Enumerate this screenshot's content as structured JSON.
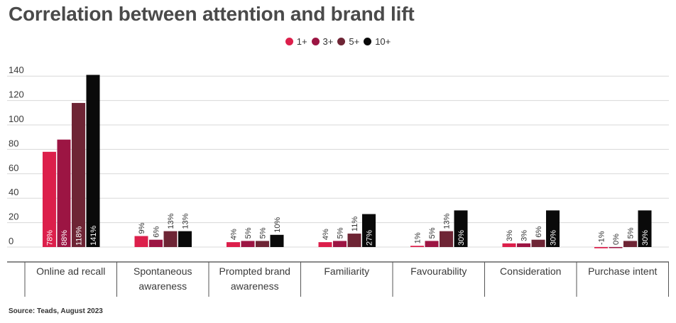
{
  "title": "Correlation between attention and brand lift",
  "source": "Source: Teads, August 2023",
  "colors": {
    "series": [
      "#dc1f4b",
      "#9c1543",
      "#6e2535",
      "#0a0a0a"
    ],
    "grid": "#d8d8d8",
    "axis": "#444444",
    "text": "#3a3a3a"
  },
  "chart_data": {
    "type": "bar",
    "title": "Correlation between attention and brand lift",
    "categories": [
      "Online ad recall",
      "Spontaneous awareness",
      "Prompted brand awareness",
      "Familiarity",
      "Favourability",
      "Consideration",
      "Purchase intent"
    ],
    "category_lines": [
      [
        "Online ad recall"
      ],
      [
        "Spontaneous",
        "awareness"
      ],
      [
        "Prompted brand",
        "awareness"
      ],
      [
        "Familiarity"
      ],
      [
        "Favourability"
      ],
      [
        "Consideration"
      ],
      [
        "Purchase intent"
      ]
    ],
    "series": [
      {
        "name": "1+",
        "values": [
          78,
          9,
          4,
          4,
          1,
          3,
          -1
        ],
        "labels": [
          "78%",
          "9%",
          "4%",
          "4%",
          "1%",
          "3%",
          "-1%"
        ]
      },
      {
        "name": "3+",
        "values": [
          88,
          6,
          5,
          5,
          5,
          3,
          0
        ],
        "labels": [
          "88%",
          "6%",
          "5%",
          "5%",
          "5%",
          "3%",
          "0%"
        ]
      },
      {
        "name": "5+",
        "values": [
          118,
          13,
          5,
          11,
          13,
          6,
          5
        ],
        "labels": [
          "118%",
          "13%",
          "5%",
          "11%",
          "13%",
          "6%",
          "5%"
        ]
      },
      {
        "name": "10+",
        "values": [
          141,
          13,
          10,
          27,
          30,
          30,
          30
        ],
        "labels": [
          "141%",
          "13%",
          "10%",
          "27%",
          "30%",
          "30%",
          "30%"
        ]
      }
    ],
    "y_ticks": [
      0,
      20,
      40,
      60,
      80,
      100,
      120,
      140
    ],
    "ylim": [
      0,
      140
    ],
    "grid": true,
    "legend_position": "top-center"
  }
}
